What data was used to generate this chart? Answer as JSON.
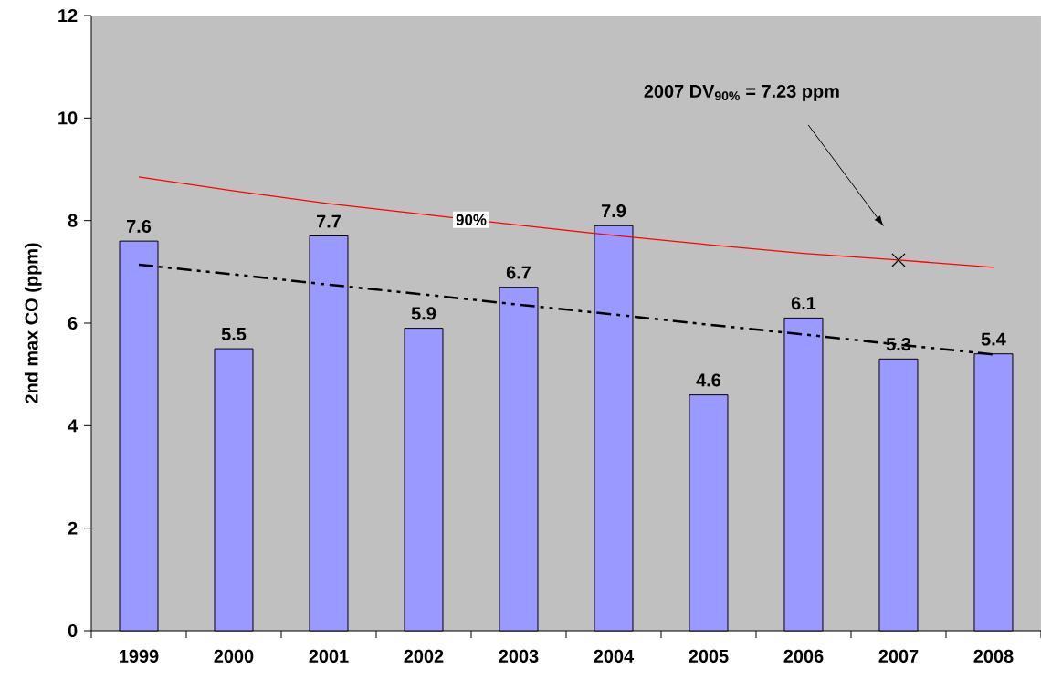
{
  "chart_data": {
    "type": "bar",
    "ylabel": "2nd max CO (ppm)",
    "categories": [
      "1999",
      "2000",
      "2001",
      "2002",
      "2003",
      "2004",
      "2005",
      "2006",
      "2007",
      "2008"
    ],
    "values": [
      7.6,
      5.5,
      7.7,
      5.9,
      6.7,
      7.9,
      4.6,
      6.1,
      5.3,
      5.4
    ],
    "color": "#9999ff",
    "value_labels": [
      "7.6",
      "5.5",
      "7.7",
      "5.9",
      "6.7",
      "7.9",
      "4.6",
      "6.1",
      "5.3",
      "5.4"
    ],
    "series": [
      {
        "type": "line",
        "name": "90%",
        "color": "#ff0000",
        "values": [
          8.85,
          8.58,
          8.33,
          8.12,
          7.91,
          7.71,
          7.53,
          7.36,
          7.23,
          7.09
        ]
      },
      {
        "type": "line",
        "color": "#000000",
        "line_style": "dashed",
        "values": [
          7.14,
          6.95,
          6.75,
          6.56,
          6.36,
          6.17,
          5.97,
          5.78,
          5.58,
          5.39
        ]
      },
      {
        "type": "scatter",
        "color": "#000000",
        "marker": "cross",
        "values": [
          null,
          null,
          null,
          null,
          null,
          null,
          null,
          null,
          7.23,
          null
        ]
      }
    ],
    "annotations": [
      "2007 DV$_{90%}$ = 7.23 ppm"
    ],
    "ylim": [
      0,
      12
    ],
    "yticks": [
      0,
      2,
      4,
      6,
      8,
      10,
      12
    ],
    "grid": false,
    "legend": false
  }
}
